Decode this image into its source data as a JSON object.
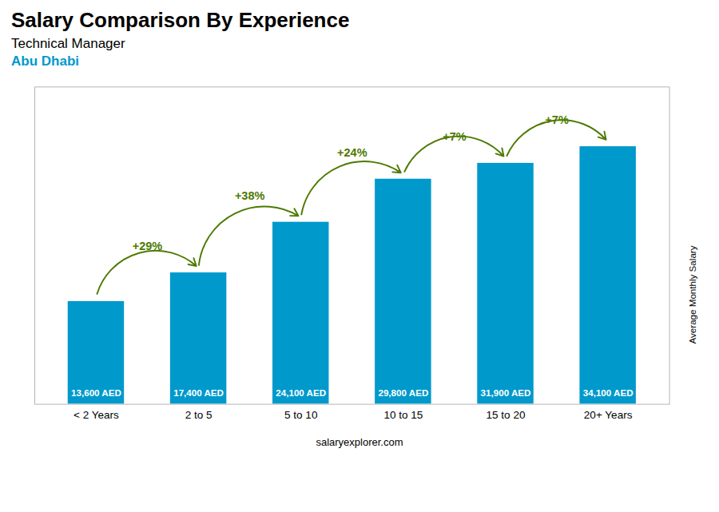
{
  "chart_data": {
    "type": "bar",
    "title": "Salary Comparison By Experience",
    "subtitle": [
      "Technical Manager",
      "Abu Dhabi"
    ],
    "caption": "salaryexplorer.com",
    "ylabel": "Average Monthly Salary",
    "categories": [
      "< 2 Years",
      "2 to 5",
      "5 to 10",
      "10 to 15",
      "15 to 20",
      "20+ Years"
    ],
    "values": [
      13600,
      17400,
      24100,
      29800,
      31900,
      34100
    ],
    "value_labels": [
      "13,600 AED",
      "17,400 AED",
      "24,100 AED",
      "29,800 AED",
      "31,900 AED",
      "34,100 AED"
    ],
    "data_labels": true,
    "annotations": [
      "+29%",
      "+38%",
      "+24%",
      "+7%",
      "+7%"
    ],
    "color": "#0099cc",
    "ylim": [
      0,
      42000
    ],
    "tick_labels": "x"
  }
}
